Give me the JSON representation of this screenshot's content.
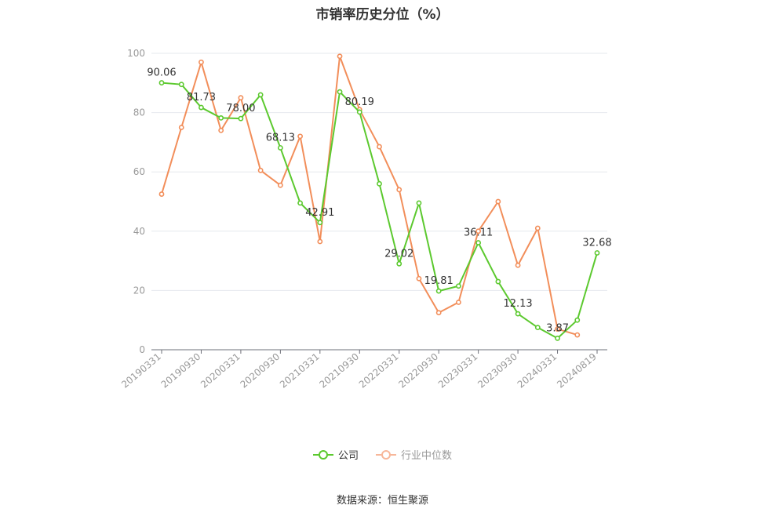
{
  "chart_data": {
    "type": "line",
    "title": "市销率历史分位（%）",
    "x": [
      "20190331",
      "",
      "20190930",
      "",
      "20200331",
      "",
      "20200930",
      "",
      "20210331",
      "",
      "20210930",
      "",
      "20220331",
      "",
      "20220930",
      "",
      "20230331",
      "",
      "20230930",
      "",
      "20240331",
      "",
      "20240819"
    ],
    "ylim": [
      0,
      100
    ],
    "yticks": [
      0,
      20,
      40,
      60,
      80,
      100
    ],
    "grid": true,
    "legend_position": "bottom",
    "series": [
      {
        "name": "公司",
        "color": "#5cc92f",
        "values": [
          90.06,
          89.5,
          81.73,
          78.2,
          78.0,
          86.0,
          68.13,
          49.5,
          42.91,
          87.0,
          80.19,
          56.0,
          29.02,
          49.5,
          19.81,
          21.5,
          36.11,
          23.0,
          12.13,
          7.5,
          3.87,
          10.0,
          32.68
        ],
        "labels": [
          "90.06",
          "",
          "81.73",
          "",
          "78.00",
          "",
          "68.13",
          "",
          "42.91",
          "",
          "80.19",
          "",
          "29.02",
          "",
          "19.81",
          "",
          "36.11",
          "",
          "12.13",
          "",
          "3.87",
          "",
          "32.68"
        ]
      },
      {
        "name": "行业中位数",
        "color": "#f28e5a",
        "values": [
          52.5,
          75.0,
          97.0,
          74.0,
          85.0,
          60.5,
          55.5,
          72.0,
          36.5,
          99.0,
          81.0,
          68.5,
          54.0,
          24.0,
          12.5,
          16.0,
          40.0,
          50.0,
          28.5,
          41.0,
          7.0,
          5.0,
          null
        ]
      }
    ]
  },
  "legend": {
    "items": [
      "公司",
      "行业中位数"
    ]
  },
  "source": "数据来源：恒生聚源"
}
